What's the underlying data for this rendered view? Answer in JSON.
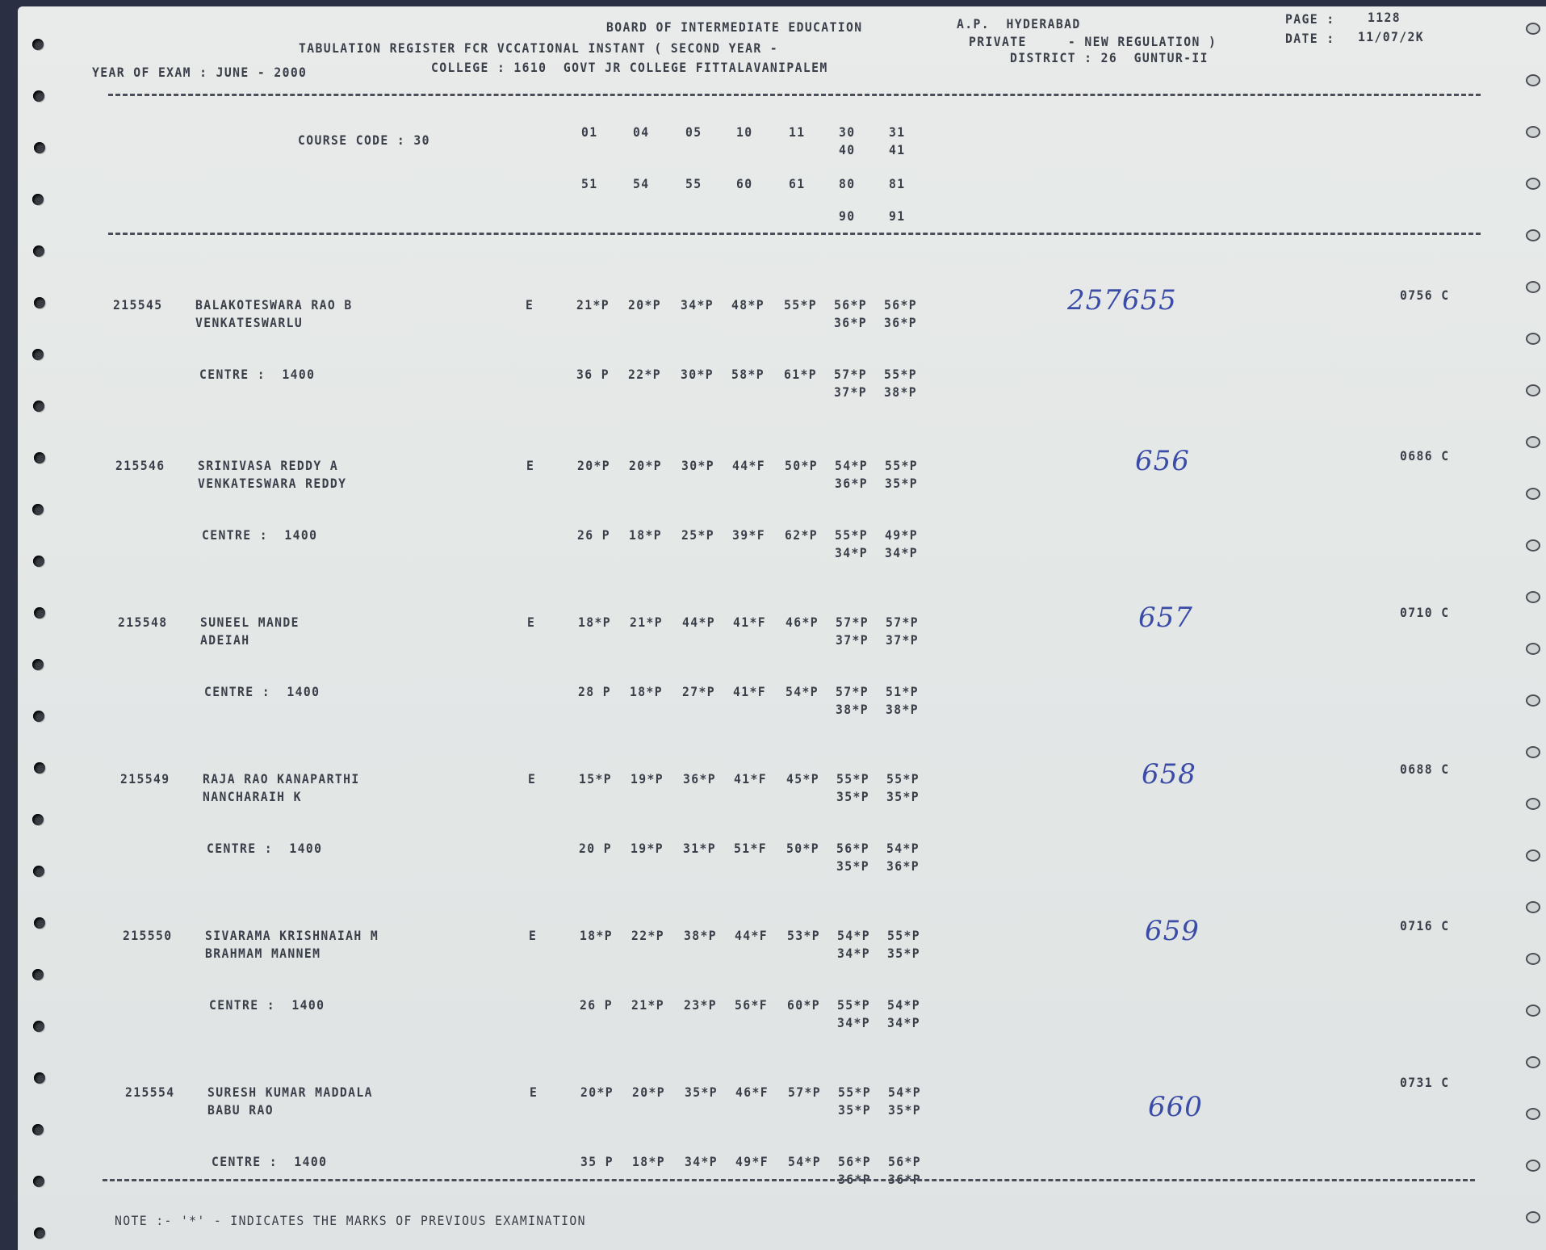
{
  "header": {
    "board": "BOARD OF INTERMEDIATE EDUCATION",
    "location": "A.P.  HYDERABAD",
    "page_label": "PAGE :",
    "page_number": "1128",
    "register_title": "TABULATION REGISTER FCR VCCATIONAL INSTANT ( SECOND YEAR -",
    "register_type": "PRIVATE     - NEW REGULATION )",
    "date_label": "DATE :",
    "date": "11/07/2K",
    "year_of_exam": "YEAR OF EXAM : JUNE - 2000",
    "college": "COLLEGE : 1610  GOVT JR COLLEGE FITTALAVANIPALEM",
    "district": "DISTRICT : 26  GUNTUR-II"
  },
  "course": {
    "label": "COURSE CODE : 30",
    "codes_row1": [
      "01",
      "04",
      "05",
      "10",
      "11",
      "30",
      "31"
    ],
    "codes_row1b": [
      "40",
      "41"
    ],
    "codes_row2": [
      "51",
      "54",
      "55",
      "60",
      "61",
      "80",
      "81"
    ],
    "codes_row2b": [
      "90",
      "91"
    ]
  },
  "students": [
    {
      "roll": "215545",
      "name": "BALAKOTESWARA RAO B",
      "father": "VENKATESWARLU",
      "medium": "E",
      "centre": "CENTRE :  1400",
      "marks1": [
        "21*P",
        "20*P",
        "34*P",
        "48*P",
        "55*P",
        "56*P",
        "56*P"
      ],
      "marks1b": [
        "36*P",
        "36*P"
      ],
      "marks2": [
        "36 P",
        "22*P",
        "30*P",
        "58*P",
        "61*P",
        "57*P",
        "55*P"
      ],
      "marks2b": [
        "37*P",
        "38*P"
      ],
      "handwritten": "257655",
      "total": "0756 C"
    },
    {
      "roll": "215546",
      "name": "SRINIVASA REDDY A",
      "father": "VENKATESWARA REDDY",
      "medium": "E",
      "centre": "CENTRE :  1400",
      "marks1": [
        "20*P",
        "20*P",
        "30*P",
        "44*F",
        "50*P",
        "54*P",
        "55*P"
      ],
      "marks1b": [
        "36*P",
        "35*P"
      ],
      "marks2": [
        "26 P",
        "18*P",
        "25*P",
        "39*F",
        "62*P",
        "55*P",
        "49*P"
      ],
      "marks2b": [
        "34*P",
        "34*P"
      ],
      "handwritten": "656",
      "total": "0686 C"
    },
    {
      "roll": "215548",
      "name": "SUNEEL MANDE",
      "father": "ADEIAH",
      "medium": "E",
      "centre": "CENTRE :  1400",
      "marks1": [
        "18*P",
        "21*P",
        "44*P",
        "41*F",
        "46*P",
        "57*P",
        "57*P"
      ],
      "marks1b": [
        "37*P",
        "37*P"
      ],
      "marks2": [
        "28 P",
        "18*P",
        "27*P",
        "41*F",
        "54*P",
        "57*P",
        "51*P"
      ],
      "marks2b": [
        "38*P",
        "38*P"
      ],
      "handwritten": "657",
      "total": "0710 C"
    },
    {
      "roll": "215549",
      "name": "RAJA RAO KANAPARTHI",
      "father": "NANCHARAIH K",
      "medium": "E",
      "centre": "CENTRE :  1400",
      "marks1": [
        "15*P",
        "19*P",
        "36*P",
        "41*F",
        "45*P",
        "55*P",
        "55*P"
      ],
      "marks1b": [
        "35*P",
        "35*P"
      ],
      "marks2": [
        "20 P",
        "19*P",
        "31*P",
        "51*F",
        "50*P",
        "56*P",
        "54*P"
      ],
      "marks2b": [
        "35*P",
        "36*P"
      ],
      "handwritten": "658",
      "total": "0688 C"
    },
    {
      "roll": "215550",
      "name": "SIVARAMA KRISHNAIAH M",
      "father": "BRAHMAM MANNEM",
      "medium": "E",
      "centre": "CENTRE :  1400",
      "marks1": [
        "18*P",
        "22*P",
        "38*P",
        "44*F",
        "53*P",
        "54*P",
        "55*P"
      ],
      "marks1b": [
        "34*P",
        "35*P"
      ],
      "marks2": [
        "26 P",
        "21*P",
        "23*P",
        "56*F",
        "60*P",
        "55*P",
        "54*P"
      ],
      "marks2b": [
        "34*P",
        "34*P"
      ],
      "handwritten": "659",
      "total": "0716 C"
    },
    {
      "roll": "215554",
      "name": "SURESH KUMAR MADDALA",
      "father": "BABU RAO",
      "medium": "E",
      "centre": "CENTRE :  1400",
      "marks1": [
        "20*P",
        "20*P",
        "35*P",
        "46*F",
        "57*P",
        "55*P",
        "54*P"
      ],
      "marks1b": [
        "35*P",
        "35*P"
      ],
      "marks2": [
        "35 P",
        "18*P",
        "34*P",
        "49*F",
        "54*P",
        "56*P",
        "56*P"
      ],
      "marks2b": [
        "36*P",
        "36*P"
      ],
      "handwritten": "660",
      "total": "0731 C"
    }
  ],
  "footer": {
    "note": "NOTE :- '*' - INDICATES THE MARKS OF PREVIOUS EXAMINATION"
  },
  "colors": {
    "print": "#3a3f4a",
    "handwriting": "#3b4ca8",
    "paper": "#e5e8e7"
  }
}
